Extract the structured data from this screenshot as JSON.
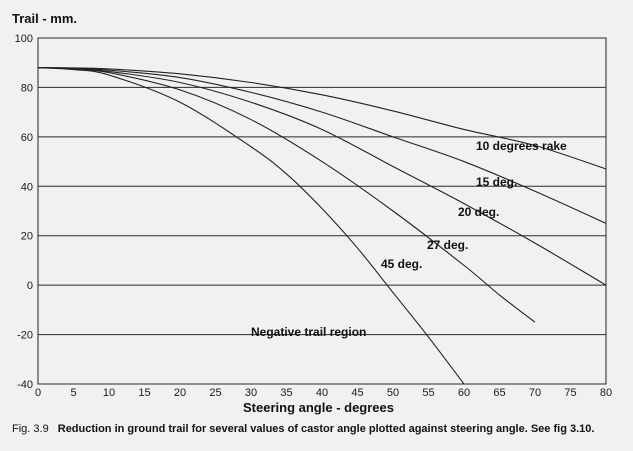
{
  "chart_data": {
    "type": "line",
    "title": "",
    "xlabel": "Steering angle - degrees",
    "ylabel": "Trail - mm.",
    "xlim": [
      0,
      80
    ],
    "ylim": [
      -40,
      100
    ],
    "x_ticks": [
      0,
      5,
      10,
      15,
      20,
      25,
      30,
      35,
      40,
      45,
      50,
      55,
      60,
      65,
      70,
      75,
      80
    ],
    "y_ticks": [
      -40,
      -20,
      0,
      20,
      40,
      60,
      80,
      100
    ],
    "grid": "horizontal lines at every y tick, heavier line at 0",
    "series": [
      {
        "name": "10 degrees rake",
        "x": [
          0,
          5,
          10,
          20,
          30,
          40,
          50,
          60,
          70,
          80
        ],
        "y": [
          88,
          87.9,
          87.5,
          85.5,
          82,
          77,
          70.5,
          63,
          56.5,
          47
        ]
      },
      {
        "name": "15 deg.",
        "x": [
          0,
          5,
          10,
          20,
          30,
          40,
          50,
          60,
          70,
          80
        ],
        "y": [
          88,
          87.8,
          87,
          84,
          78,
          70,
          60,
          50,
          38,
          25
        ]
      },
      {
        "name": "20 deg.",
        "x": [
          0,
          5,
          10,
          20,
          30,
          40,
          50,
          60,
          70,
          80
        ],
        "y": [
          88,
          87.7,
          86.5,
          82,
          74,
          63,
          48,
          33,
          17,
          0
        ]
      },
      {
        "name": "27 deg.",
        "x": [
          0,
          5,
          10,
          20,
          30,
          40,
          50,
          60,
          65,
          70
        ],
        "y": [
          88,
          87.5,
          86,
          79,
          67,
          50,
          30,
          8,
          -4,
          -15
        ]
      },
      {
        "name": "45 deg.",
        "x": [
          0,
          5,
          10,
          20,
          30,
          35,
          40,
          45,
          50,
          55,
          60
        ],
        "y": [
          88,
          87.2,
          85,
          74,
          56,
          45,
          31,
          15,
          -3,
          -21,
          -40
        ]
      }
    ],
    "annotations": [
      "Negative trail region"
    ]
  },
  "caption": {
    "fig_number": "Fig.  3.9",
    "text": "Reduction in ground trail for several values of castor angle plotted against steering angle.  See  fig 3.10."
  }
}
